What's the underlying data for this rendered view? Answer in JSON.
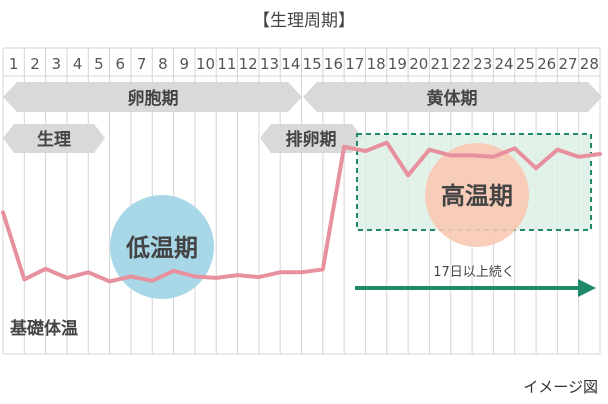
{
  "title": "【生理周期】",
  "days": [
    "1",
    "2",
    "3",
    "4",
    "5",
    "6",
    "7",
    "8",
    "9",
    "10",
    "11",
    "12",
    "13",
    "14",
    "15",
    "16",
    "17",
    "18",
    "19",
    "20",
    "21",
    "22",
    "23",
    "24",
    "25",
    "26",
    "27",
    "28"
  ],
  "phases": {
    "follicular": "卵胞期",
    "luteal": "黄体期",
    "menstruation": "生理",
    "ovulation": "排卵期"
  },
  "periods": {
    "low": "低温期",
    "high": "高温期"
  },
  "duration_note": "17日以上続く",
  "temp_label": "基礎体温",
  "caption": "イメージ図",
  "colors": {
    "line": "#e8919e",
    "arrow": "#1f8a6b",
    "low_circle": "#a8d8e8",
    "high_circle": "#f8c9b4",
    "high_box": "#dcefe4",
    "box_border": "#1f8a6b",
    "phase_arrow": "#d9d9d9",
    "grid": "#d4d4d4"
  },
  "chart_data": {
    "type": "line",
    "x": [
      0,
      1,
      2,
      3,
      4,
      5,
      6,
      7,
      8,
      9,
      10,
      11,
      12,
      13,
      14,
      15,
      16,
      17,
      18,
      19,
      20,
      21,
      22,
      23,
      24,
      25,
      26,
      27,
      28
    ],
    "series": [
      {
        "values": [
          3.6,
          1.25,
          1.62,
          1.3,
          1.5,
          1.18,
          1.35,
          1.2,
          1.55,
          1.35,
          1.3,
          1.4,
          1.33,
          1.5,
          1.5,
          1.6,
          5.9,
          5.75,
          6.05,
          4.9,
          5.8,
          5.6,
          5.6,
          5.55,
          5.85,
          5.15,
          5.8,
          5.55,
          5.65
        ]
      }
    ]
  }
}
